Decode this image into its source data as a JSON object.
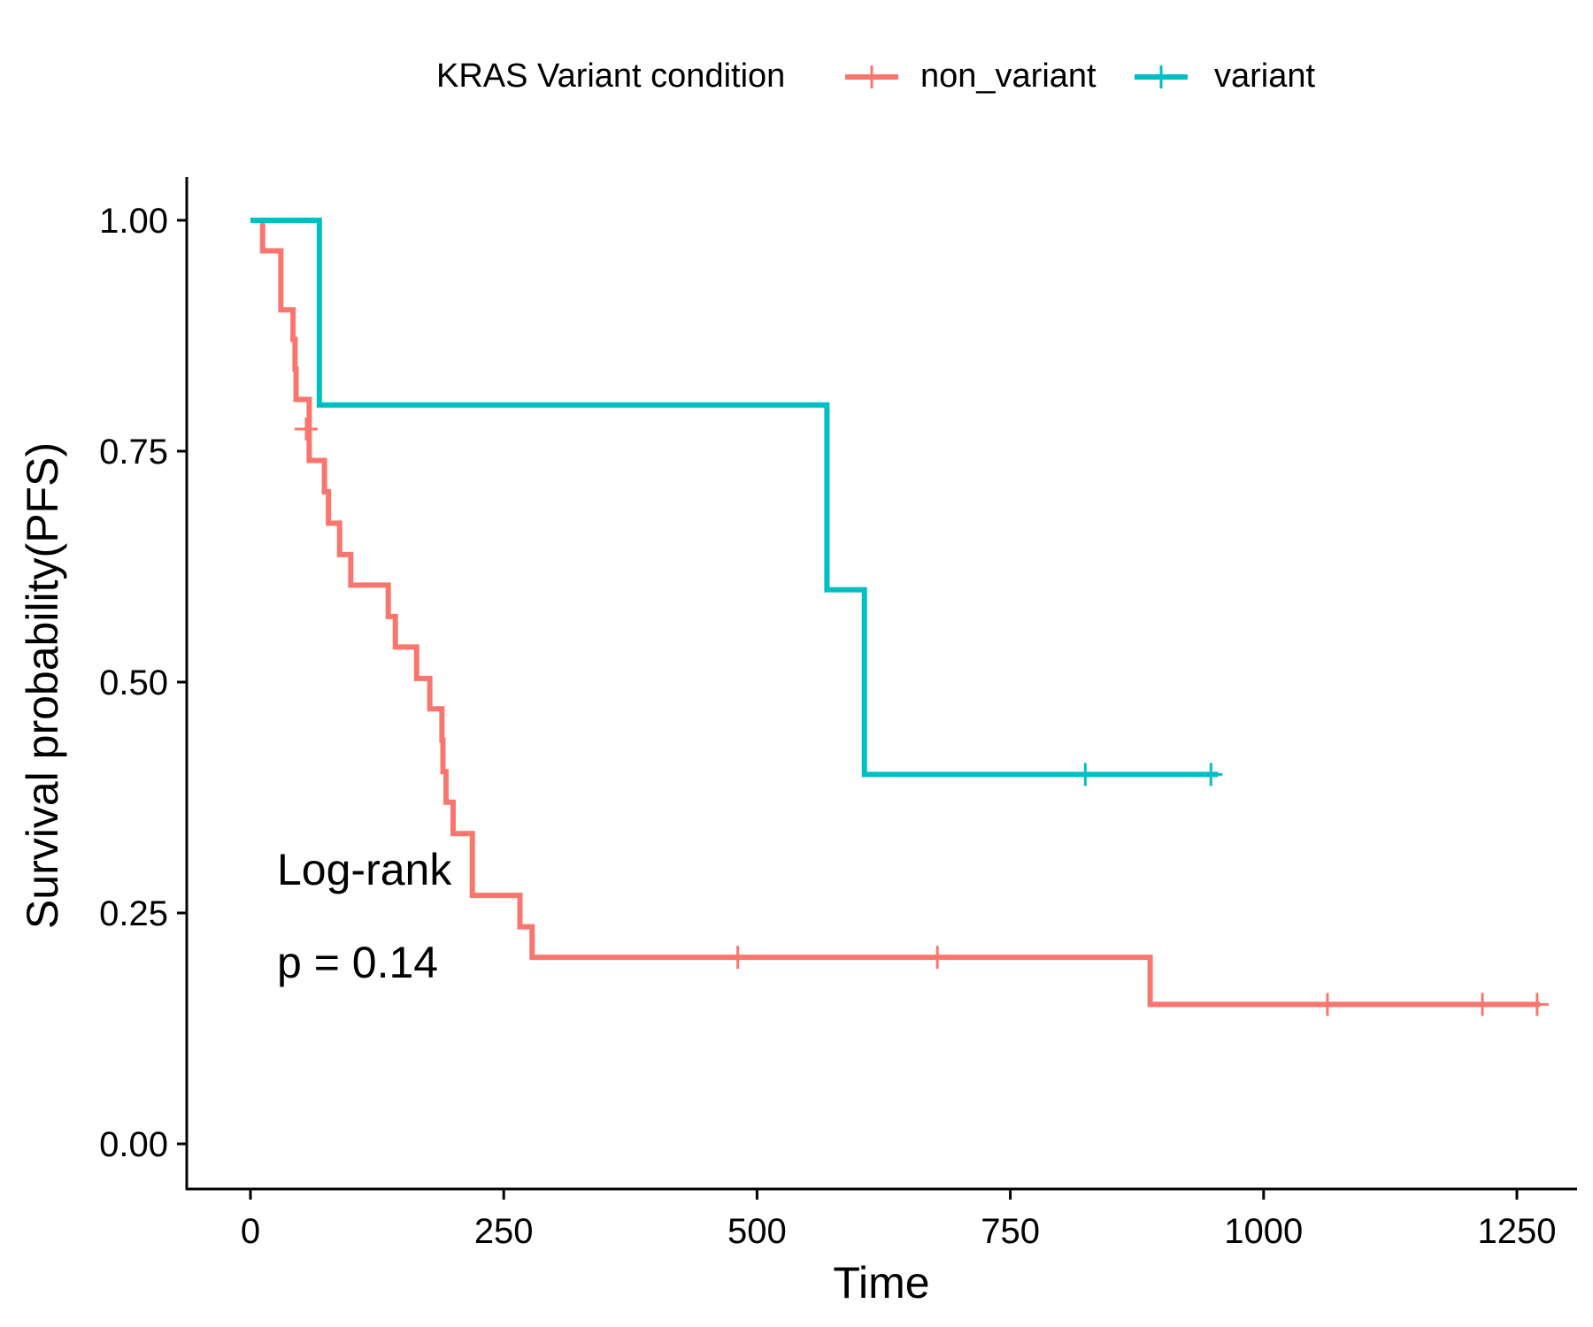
{
  "chart_data": {
    "type": "line",
    "title": "",
    "xlabel": "Time",
    "ylabel": "Survival probability(PFS)",
    "xlim": [
      -70,
      1310
    ],
    "ylim": [
      -0.05,
      1.05
    ],
    "xticks": [
      0,
      250,
      500,
      750,
      1000,
      1250
    ],
    "xtick_labels": [
      "0",
      "250",
      "500",
      "750",
      "1000",
      "1250"
    ],
    "yticks": [
      0,
      0.25,
      0.5,
      0.75,
      1.0
    ],
    "ytick_labels": [
      "0.00",
      "0.25",
      "0.50",
      "0.75",
      "1.00"
    ],
    "grid": false,
    "legend": {
      "title": "KRAS Variant condition",
      "position": "top",
      "entries": [
        "non_variant",
        "variant"
      ]
    },
    "annotation": {
      "line1": "Log-rank",
      "line2": "p = 0.14"
    },
    "series": [
      {
        "name": "non_variant",
        "color": "#F8766D",
        "steps": [
          [
            0,
            1.0
          ],
          [
            12,
            0.967
          ],
          [
            30,
            0.903
          ],
          [
            42,
            0.871
          ],
          [
            44,
            0.839
          ],
          [
            45,
            0.806
          ],
          [
            58,
            0.74
          ],
          [
            73,
            0.706
          ],
          [
            77,
            0.672
          ],
          [
            88,
            0.638
          ],
          [
            99,
            0.605
          ],
          [
            136,
            0.571
          ],
          [
            143,
            0.538
          ],
          [
            164,
            0.504
          ],
          [
            177,
            0.471
          ],
          [
            189,
            0.437
          ],
          [
            190,
            0.403
          ],
          [
            193,
            0.37
          ],
          [
            200,
            0.336
          ],
          [
            219,
            0.269
          ],
          [
            266,
            0.235
          ],
          [
            278,
            0.202
          ],
          [
            888,
            0.151
          ],
          [
            1273,
            0.151
          ]
        ],
        "censored": [
          [
            55,
            0.774
          ],
          [
            481,
            0.202
          ],
          [
            678,
            0.202
          ],
          [
            1063,
            0.151
          ],
          [
            1216,
            0.151
          ],
          [
            1270,
            0.151
          ]
        ]
      },
      {
        "name": "variant",
        "color": "#00BFC4",
        "steps": [
          [
            0,
            1.0
          ],
          [
            68,
            0.8
          ],
          [
            569,
            0.6
          ],
          [
            606,
            0.4
          ],
          [
            955,
            0.4
          ]
        ],
        "censored": [
          [
            824,
            0.4
          ],
          [
            948,
            0.4
          ]
        ]
      }
    ]
  }
}
